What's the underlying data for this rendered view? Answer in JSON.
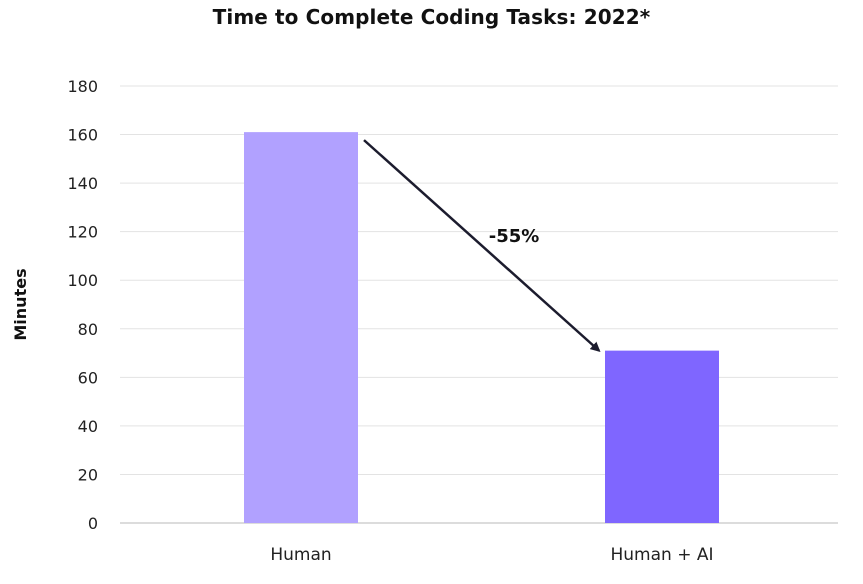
{
  "chart_data": {
    "type": "bar",
    "title": "Time to Complete Coding Tasks: 2022*",
    "xlabel": "",
    "ylabel": "Minutes",
    "categories": [
      "Human",
      "Human + AI"
    ],
    "values": [
      161,
      71
    ],
    "bar_colors": [
      "#b1a1ff",
      "#7f66ff"
    ],
    "ylim": [
      0,
      180
    ],
    "yticks": [
      "0",
      "20",
      "40",
      "60",
      "80",
      "100",
      "120",
      "140",
      "160",
      "180"
    ],
    "grid": true,
    "legend": "none",
    "annotation": {
      "text": "-55%",
      "from_category": "Human",
      "to_category": "Human + AI",
      "arrow_color": "#1c1c2e"
    }
  }
}
